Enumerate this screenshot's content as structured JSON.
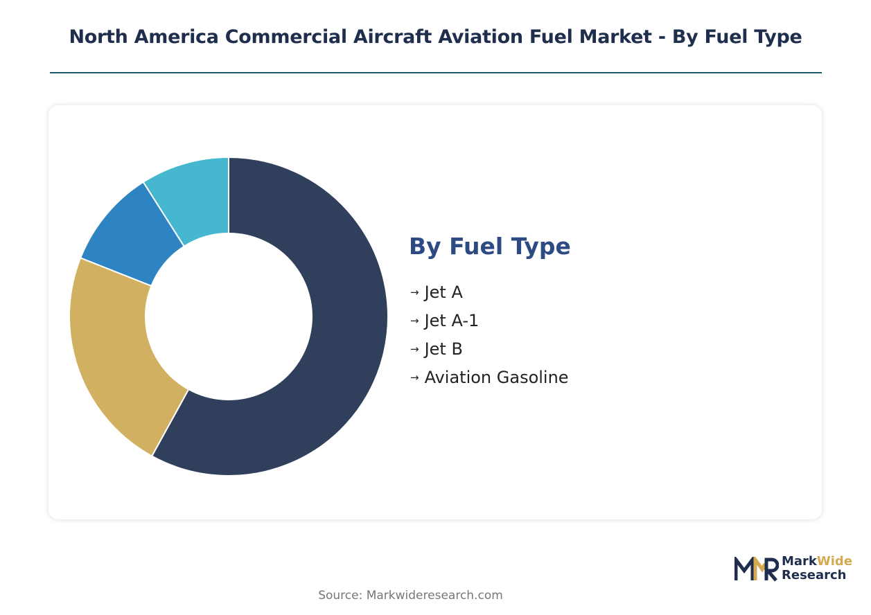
{
  "header": {
    "title": "North America Commercial Aircraft Aviation Fuel Market - By Fuel Type"
  },
  "chart_data": {
    "type": "pie",
    "donut": true,
    "categories": [
      "Jet A",
      "Jet A-1",
      "Jet B",
      "Aviation Gasoline"
    ],
    "values": [
      58,
      23,
      10,
      9
    ],
    "colors": [
      "#2f3f5c",
      "#d2b061",
      "#2e84c2",
      "#45b7cf"
    ],
    "title": "",
    "legend_title": "By Fuel Type",
    "legend_position": "right"
  },
  "legend": {
    "title": "By Fuel Type",
    "items": [
      "Jet A",
      "Jet A-1",
      "Jet B",
      "Aviation Gasoline"
    ]
  },
  "logo": {
    "line1_a": "Mark",
    "line1_b": "Wide",
    "line2": "Research"
  },
  "footer": {
    "source": "Source: Markwideresearch.com"
  }
}
